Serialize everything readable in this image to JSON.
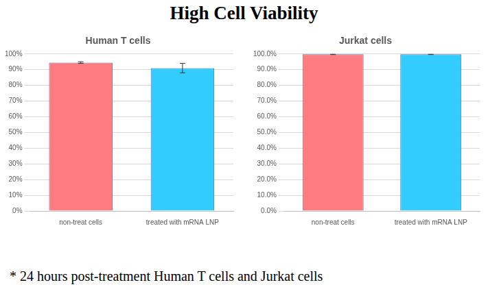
{
  "title": "High Cell Viability",
  "footnote": "* 24 hours post-treatment Human T cells and Jurkat cells",
  "chart_data": [
    {
      "type": "bar",
      "title": "Human T cells",
      "categories": [
        "non-treat cells",
        "treated with mRNA LNP"
      ],
      "values": [
        94.5,
        91
      ],
      "errors": [
        0.5,
        3
      ],
      "colors": [
        "#ff7c80",
        "#33ccff"
      ],
      "ylim": [
        0,
        100
      ],
      "yticks": [
        {
          "value": 0,
          "label": "0%"
        },
        {
          "value": 10,
          "label": "10%"
        },
        {
          "value": 20,
          "label": "20%"
        },
        {
          "value": 30,
          "label": "30%"
        },
        {
          "value": 40,
          "label": "40%"
        },
        {
          "value": 50,
          "label": "50%"
        },
        {
          "value": 60,
          "label": "60%"
        },
        {
          "value": 70,
          "label": "70%"
        },
        {
          "value": 80,
          "label": "80%"
        },
        {
          "value": 90,
          "label": "90%"
        },
        {
          "value": 100,
          "label": "100%"
        }
      ],
      "grid": true
    },
    {
      "type": "bar",
      "title": "Jurkat cells",
      "categories": [
        "non-treat cells",
        "treated with mRNA LNP"
      ],
      "values": [
        99.8,
        99.8
      ],
      "errors": [
        0.2,
        0.2
      ],
      "colors": [
        "#ff7c80",
        "#33ccff"
      ],
      "ylim": [
        0,
        100
      ],
      "yticks": [
        {
          "value": 0,
          "label": "0.0%"
        },
        {
          "value": 10,
          "label": "10.0%"
        },
        {
          "value": 20,
          "label": "20.0%"
        },
        {
          "value": 30,
          "label": "30.0%"
        },
        {
          "value": 40,
          "label": "40.0%"
        },
        {
          "value": 50,
          "label": "50.0%"
        },
        {
          "value": 60,
          "label": "60.0%"
        },
        {
          "value": 70,
          "label": "70.0%"
        },
        {
          "value": 80,
          "label": "80.0%"
        },
        {
          "value": 90,
          "label": "90.0%"
        },
        {
          "value": 100,
          "label": "100.0%"
        }
      ],
      "grid": true
    }
  ]
}
